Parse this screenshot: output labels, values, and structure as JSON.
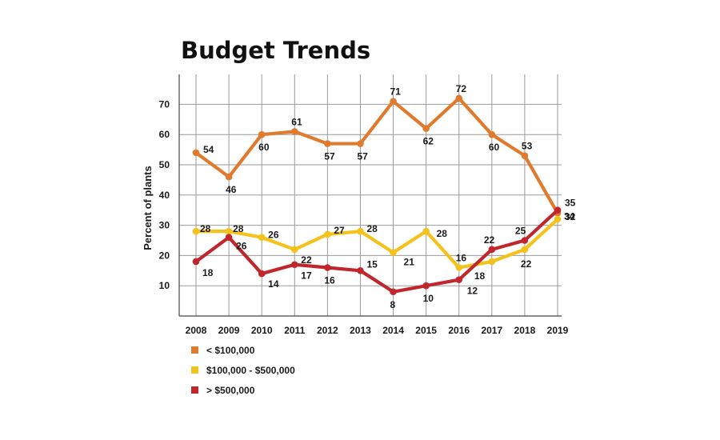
{
  "chart_data": {
    "type": "line",
    "title": "Budget Trends",
    "xlabel": "",
    "ylabel": "Percent of plants",
    "x": [
      "2008",
      "2009",
      "2010",
      "2011",
      "2012",
      "2013",
      "2014",
      "2015",
      "2016",
      "2017",
      "2018",
      "2019"
    ],
    "yticks": [
      10,
      20,
      30,
      40,
      50,
      60,
      70
    ],
    "ylim": [
      0,
      80
    ],
    "grid": true,
    "legend_position": "bottom-left",
    "series": [
      {
        "name": "< $100,000",
        "color": "#e07a2c",
        "values": [
          54,
          46,
          60,
          61,
          57,
          57,
          71,
          62,
          72,
          60,
          53,
          34
        ]
      },
      {
        "name": "$100,000 - $500,000",
        "color": "#f4c21a",
        "values": [
          28,
          28,
          26,
          22,
          27,
          28,
          21,
          28,
          16,
          18,
          22,
          32
        ]
      },
      {
        "name": "> $500,000",
        "color": "#c0262c",
        "values": [
          18,
          26,
          14,
          17,
          16,
          15,
          8,
          10,
          12,
          22,
          25,
          35
        ]
      }
    ]
  }
}
